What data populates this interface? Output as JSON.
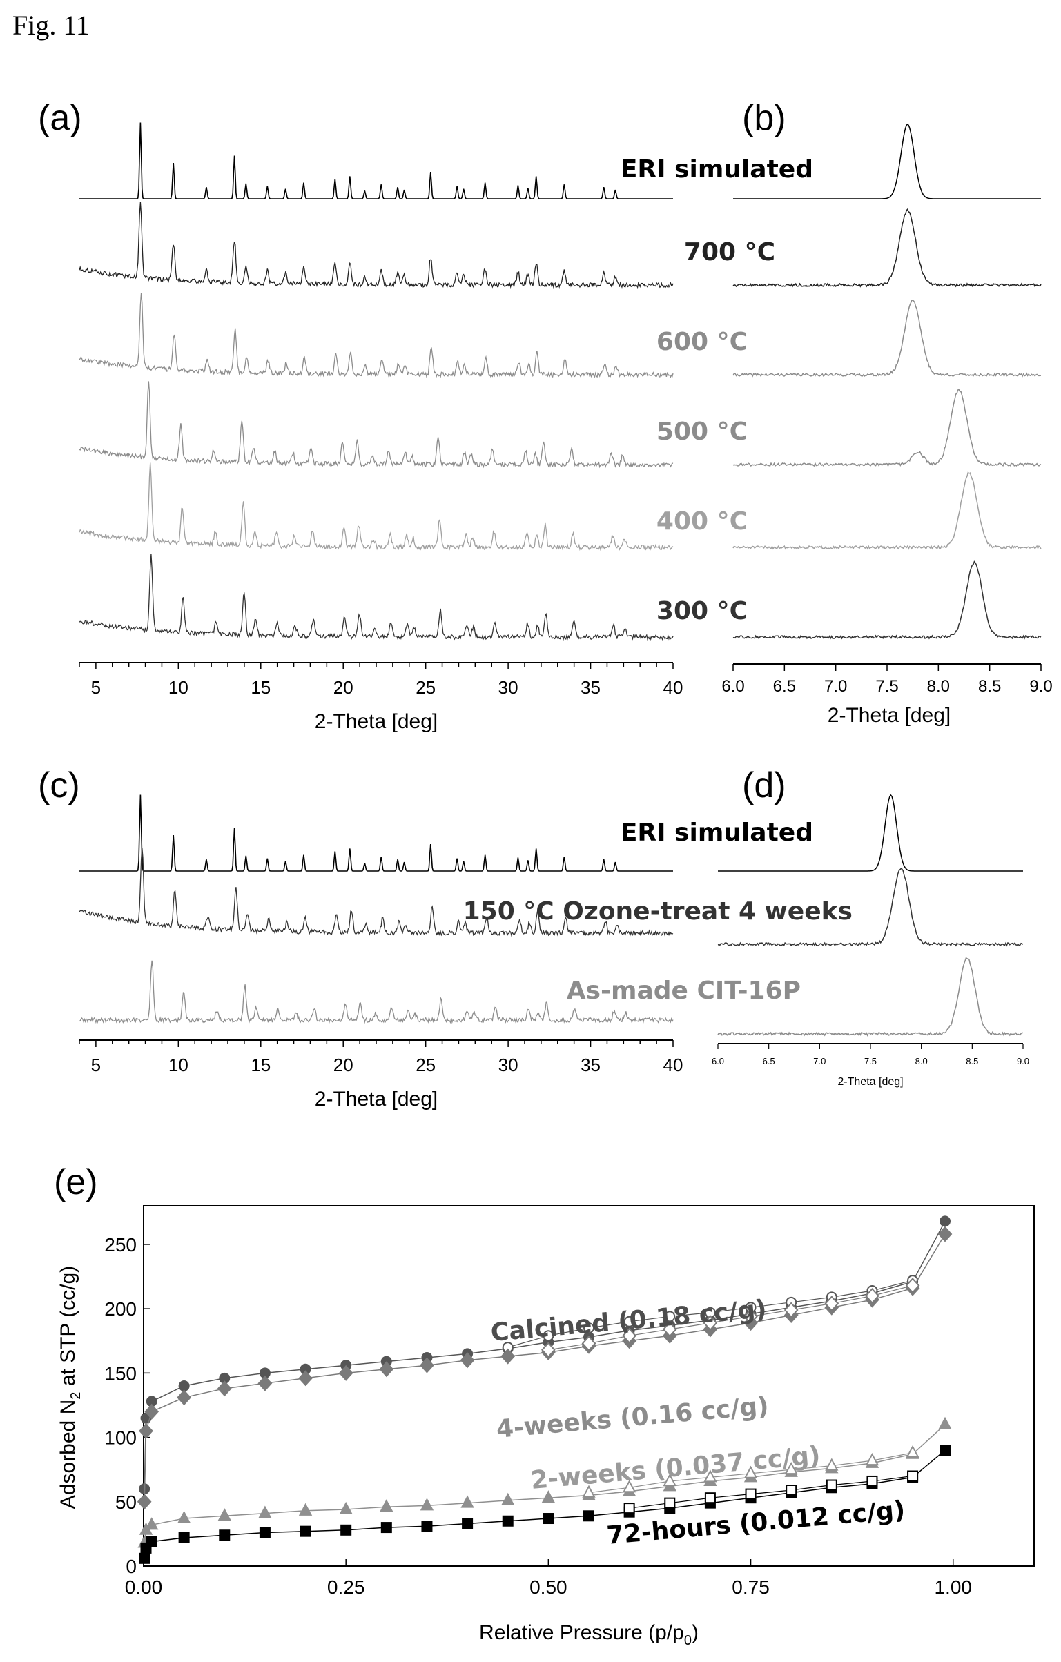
{
  "figure_label": "Fig. 11",
  "panels": {
    "a": "(a)",
    "b": "(b)",
    "c": "(c)",
    "d": "(d)",
    "e": "(e)"
  },
  "chart_data": [
    {
      "panel": "a",
      "type": "line",
      "xlabel": "2-Theta [deg]",
      "ylabel": "",
      "xlim": [
        4,
        40
      ],
      "xticks": [
        5,
        10,
        15,
        20,
        25,
        30,
        35,
        40
      ],
      "peaks_2theta": [
        7.7,
        9.7,
        11.7,
        13.4,
        14.1,
        15.4,
        16.5,
        17.6,
        19.5,
        20.4,
        21.3,
        22.3,
        23.3,
        23.7,
        25.3,
        26.9,
        27.3,
        28.6,
        30.6,
        31.2,
        31.7,
        33.4,
        35.8,
        36.5
      ],
      "series": [
        {
          "name": "ERI simulated",
          "color": "#000000",
          "peak_2theta": 7.7
        },
        {
          "name": "700 °C",
          "color": "#222222",
          "peak_2theta": 7.7
        },
        {
          "name": "600 °C",
          "color": "#8c8c8c",
          "peak_2theta": 7.75
        },
        {
          "name": "500 °C",
          "color": "#8c8c8c",
          "peak_2theta": 8.2
        },
        {
          "name": "400 °C",
          "color": "#a0a0a0",
          "peak_2theta": 8.3
        },
        {
          "name": "300 °C",
          "color": "#333333",
          "peak_2theta": 8.35
        }
      ]
    },
    {
      "panel": "b",
      "type": "line",
      "xlabel": "2-Theta [deg]",
      "ylabel": "",
      "xlim": [
        6.0,
        9.0
      ],
      "xticks": [
        "6.0",
        "6.5",
        "7.0",
        "7.5",
        "8.0",
        "8.5",
        "9.0"
      ],
      "series": [
        {
          "color": "#000000",
          "peak_2theta": 7.7
        },
        {
          "color": "#222222",
          "peak_2theta": 7.7
        },
        {
          "color": "#8c8c8c",
          "peak_2theta": 7.75
        },
        {
          "color": "#8c8c8c",
          "peak_2theta": 8.2
        },
        {
          "color": "#a0a0a0",
          "peak_2theta": 8.3
        },
        {
          "color": "#333333",
          "peak_2theta": 8.35
        }
      ]
    },
    {
      "panel": "c",
      "type": "line",
      "xlabel": "2-Theta [deg]",
      "ylabel": "",
      "xlim": [
        4,
        40
      ],
      "xticks": [
        5,
        10,
        15,
        20,
        25,
        30,
        35,
        40
      ],
      "series": [
        {
          "name": "ERI simulated",
          "color": "#000000",
          "peak_2theta": 7.7
        },
        {
          "name": "150 °C Ozone-treat 4 weeks",
          "color": "#333333",
          "peak_2theta": 7.8
        },
        {
          "name": "As-made CIT-16P",
          "color": "#8c8c8c",
          "peak_2theta": 8.4
        }
      ]
    },
    {
      "panel": "d",
      "type": "line",
      "xlabel": "2-Theta [deg]",
      "ylabel": "",
      "xlim": [
        6.0,
        9.0
      ],
      "xticks": [
        "6.0",
        "6.5",
        "7.0",
        "7.5",
        "8.0",
        "8.5",
        "9.0"
      ],
      "series": [
        {
          "color": "#000000",
          "peak_2theta": 7.7
        },
        {
          "color": "#333333",
          "peak_2theta": 7.8
        },
        {
          "color": "#8c8c8c",
          "peak_2theta": 8.45
        }
      ]
    },
    {
      "panel": "e",
      "type": "scatter",
      "xlabel": "Relative Pressure (p/p",
      "xlabel_sub": "0",
      "xlabel_end": ")",
      "ylabel": "Adsorbed N",
      "ylabel_sub": "2",
      "ylabel_end": " at STP (cc/g)",
      "xlim": [
        0,
        1.1
      ],
      "ylim": [
        0,
        280
      ],
      "xticks": [
        "0.00",
        "0.25",
        "0.50",
        "0.75",
        "1.00"
      ],
      "xtick_values": [
        0,
        0.25,
        0.5,
        0.75,
        1.0
      ],
      "yticks": [
        0,
        50,
        100,
        150,
        200,
        250
      ],
      "annotations": [
        {
          "text": "Calcined (0.18 cc/g)",
          "color": "#4d4d4d"
        },
        {
          "text": "4-weeks (0.16 cc/g)",
          "color": "#8c8c8c"
        },
        {
          "text": "2-weeks (0.037 cc/g)",
          "color": "#9a9a9a"
        },
        {
          "text": "72-hours (0.012 cc/g)",
          "color": "#000000"
        }
      ],
      "series": [
        {
          "name": "Calcined (0.18 cc/g)",
          "marker": "circle",
          "color": "#555555",
          "adsorption": [
            [
              0.001,
              60
            ],
            [
              0.003,
              115
            ],
            [
              0.01,
              128
            ],
            [
              0.05,
              140
            ],
            [
              0.1,
              146
            ],
            [
              0.15,
              150
            ],
            [
              0.2,
              153
            ],
            [
              0.25,
              156
            ],
            [
              0.3,
              159
            ],
            [
              0.35,
              162
            ],
            [
              0.4,
              165
            ],
            [
              0.45,
              169
            ],
            [
              0.5,
              174
            ],
            [
              0.55,
              178
            ],
            [
              0.6,
              183
            ],
            [
              0.65,
              187
            ],
            [
              0.7,
              191
            ],
            [
              0.75,
              196
            ],
            [
              0.8,
              201
            ],
            [
              0.85,
              206
            ],
            [
              0.9,
              212
            ],
            [
              0.95,
              221
            ],
            [
              0.99,
              268
            ]
          ],
          "desorption": [
            [
              0.95,
              222
            ],
            [
              0.9,
              214
            ],
            [
              0.85,
              209
            ],
            [
              0.8,
              205
            ],
            [
              0.75,
              201
            ],
            [
              0.7,
              197
            ],
            [
              0.65,
              194
            ],
            [
              0.6,
              190
            ],
            [
              0.55,
              185
            ],
            [
              0.5,
              179
            ],
            [
              0.45,
              170
            ]
          ]
        },
        {
          "name": "4-weeks (0.16 cc/g)",
          "marker": "diamond",
          "color": "#7a7a7a",
          "adsorption": [
            [
              0.001,
              50
            ],
            [
              0.003,
              105
            ],
            [
              0.01,
              120
            ],
            [
              0.05,
              131
            ],
            [
              0.1,
              138
            ],
            [
              0.15,
              142
            ],
            [
              0.2,
              146
            ],
            [
              0.25,
              150
            ],
            [
              0.3,
              153
            ],
            [
              0.35,
              156
            ],
            [
              0.4,
              160
            ],
            [
              0.45,
              163
            ],
            [
              0.5,
              166
            ],
            [
              0.55,
              171
            ],
            [
              0.6,
              175
            ],
            [
              0.65,
              179
            ],
            [
              0.7,
              184
            ],
            [
              0.75,
              189
            ],
            [
              0.8,
              195
            ],
            [
              0.85,
              201
            ],
            [
              0.9,
              207
            ],
            [
              0.95,
              216
            ],
            [
              0.99,
              258
            ]
          ],
          "desorption": [
            [
              0.95,
              218
            ],
            [
              0.9,
              210
            ],
            [
              0.85,
              204
            ],
            [
              0.8,
              199
            ],
            [
              0.75,
              194
            ],
            [
              0.7,
              189
            ],
            [
              0.65,
              184
            ],
            [
              0.6,
              179
            ],
            [
              0.55,
              173
            ],
            [
              0.5,
              168
            ]
          ]
        },
        {
          "name": "2-weeks (0.037 cc/g)",
          "marker": "triangle",
          "color": "#8f8f8f",
          "adsorption": [
            [
              0.001,
              18
            ],
            [
              0.003,
              28
            ],
            [
              0.01,
              32
            ],
            [
              0.05,
              37
            ],
            [
              0.1,
              39
            ],
            [
              0.15,
              41
            ],
            [
              0.2,
              43
            ],
            [
              0.25,
              44
            ],
            [
              0.3,
              46
            ],
            [
              0.35,
              47
            ],
            [
              0.4,
              49
            ],
            [
              0.45,
              51
            ],
            [
              0.5,
              53
            ],
            [
              0.55,
              55
            ],
            [
              0.6,
              58
            ],
            [
              0.65,
              62
            ],
            [
              0.7,
              66
            ],
            [
              0.75,
              69
            ],
            [
              0.8,
              73
            ],
            [
              0.85,
              76
            ],
            [
              0.9,
              80
            ],
            [
              0.95,
              87
            ],
            [
              0.99,
              110
            ]
          ],
          "desorption": [
            [
              0.95,
              88
            ],
            [
              0.9,
              82
            ],
            [
              0.85,
              78
            ],
            [
              0.8,
              75
            ],
            [
              0.75,
              72
            ],
            [
              0.7,
              69
            ],
            [
              0.65,
              66
            ],
            [
              0.6,
              61
            ],
            [
              0.55,
              57
            ]
          ]
        },
        {
          "name": "72-hours (0.012 cc/g)",
          "marker": "square",
          "color": "#000000",
          "adsorption": [
            [
              0.001,
              6
            ],
            [
              0.003,
              14
            ],
            [
              0.01,
              19
            ],
            [
              0.05,
              22
            ],
            [
              0.1,
              24
            ],
            [
              0.15,
              26
            ],
            [
              0.2,
              27
            ],
            [
              0.25,
              28
            ],
            [
              0.3,
              30
            ],
            [
              0.35,
              31
            ],
            [
              0.4,
              33
            ],
            [
              0.45,
              35
            ],
            [
              0.5,
              37
            ],
            [
              0.55,
              39
            ],
            [
              0.6,
              42
            ],
            [
              0.65,
              45
            ],
            [
              0.7,
              49
            ],
            [
              0.75,
              53
            ],
            [
              0.8,
              57
            ],
            [
              0.85,
              61
            ],
            [
              0.9,
              64
            ],
            [
              0.95,
              69
            ],
            [
              0.99,
              90
            ]
          ],
          "desorption": [
            [
              0.95,
              70
            ],
            [
              0.9,
              66
            ],
            [
              0.85,
              63
            ],
            [
              0.8,
              59
            ],
            [
              0.75,
              56
            ],
            [
              0.7,
              53
            ],
            [
              0.65,
              49
            ],
            [
              0.6,
              45
            ]
          ]
        }
      ]
    }
  ]
}
